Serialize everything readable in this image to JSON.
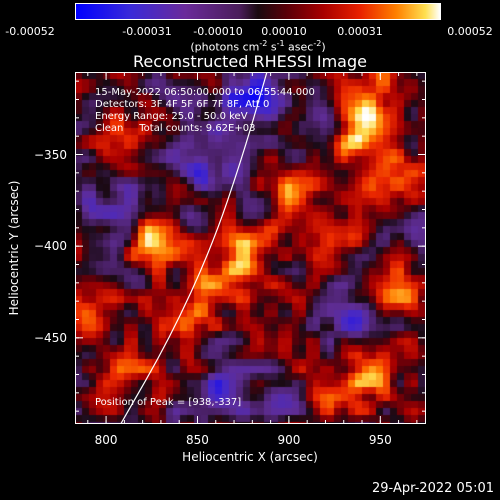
{
  "colorbar": {
    "ticks": [
      "-0.00052",
      "-0.00031",
      "-0.00010",
      "0.00010",
      "0.00031",
      "0.00052"
    ],
    "unit_prefix": "(photons cm",
    "unit_exp1": "-2",
    "unit_mid1": " s",
    "unit_exp2": "-1",
    "unit_mid2": " asec",
    "unit_exp3": "-2",
    "unit_suffix": ")"
  },
  "info": {
    "line1": "15-May-2022 06:50:00.000 to 06:55:44.000",
    "line2": "Detectors: 3F 4F 5F 6F 7F 8F, Att 0",
    "line3": "Energy Range: 25.0 - 50.0 keV",
    "line4": "Clean     Total counts: 9.62E+03",
    "peak": "Position of Peak = [938,-337]"
  },
  "footer": "29-Apr-2022 05:01",
  "chart_data": {
    "type": "heatmap",
    "title": "Reconstructed RHESSI Image",
    "xlabel": "Heliocentric X (arcsec)",
    "ylabel": "Heliocentric Y (arcsec)",
    "xlim": [
      783,
      975
    ],
    "ylim": [
      -497,
      -305
    ],
    "xticks": [
      800,
      850,
      900,
      950
    ],
    "yticks": [
      -350,
      -400,
      -450
    ],
    "color_range": [
      -0.00052,
      0.00052
    ],
    "peak_position": [
      938,
      -337
    ],
    "colors": {
      "neg_high": "#0000ff",
      "neg_mid": "#5a2ab0",
      "zero": "#1a0a10",
      "pos_low": "#a80000",
      "pos_mid": "#ff4000",
      "pos_high": "#ffffff"
    },
    "hotspots": [
      {
        "x": 938,
        "y": -337,
        "value": 0.0005
      },
      {
        "x": 950,
        "y": -312,
        "value": 0.00032
      },
      {
        "x": 955,
        "y": -363,
        "value": 0.00028
      },
      {
        "x": 842,
        "y": -440,
        "value": 0.00042
      },
      {
        "x": 865,
        "y": -420,
        "value": 0.0003
      },
      {
        "x": 825,
        "y": -400,
        "value": 0.00033
      },
      {
        "x": 810,
        "y": -345,
        "value": 0.0003
      },
      {
        "x": 790,
        "y": -430,
        "value": 0.00028
      },
      {
        "x": 815,
        "y": -465,
        "value": 0.00025
      },
      {
        "x": 900,
        "y": -370,
        "value": 0.00024
      },
      {
        "x": 925,
        "y": -395,
        "value": 0.00022
      },
      {
        "x": 960,
        "y": -420,
        "value": 0.0003
      },
      {
        "x": 945,
        "y": -465,
        "value": 0.00032
      },
      {
        "x": 880,
        "y": -405,
        "value": 0.00034
      },
      {
        "x": 930,
        "y": -490,
        "value": 0.00022
      },
      {
        "x": 905,
        "y": -470,
        "value": 0.0002
      }
    ],
    "coldspots": [
      {
        "x": 880,
        "y": -320,
        "value": -0.0004
      },
      {
        "x": 850,
        "y": -355,
        "value": -0.00025
      },
      {
        "x": 895,
        "y": -480,
        "value": -0.0003
      },
      {
        "x": 915,
        "y": -335,
        "value": -0.00022
      },
      {
        "x": 935,
        "y": -440,
        "value": -0.0002
      },
      {
        "x": 860,
        "y": -480,
        "value": -0.00022
      },
      {
        "x": 800,
        "y": -375,
        "value": -0.00018
      }
    ],
    "limb_curve": [
      [
        808,
        -497
      ],
      [
        835,
        -450
      ],
      [
        858,
        -400
      ],
      [
        875,
        -350
      ],
      [
        888,
        -305
      ]
    ]
  }
}
